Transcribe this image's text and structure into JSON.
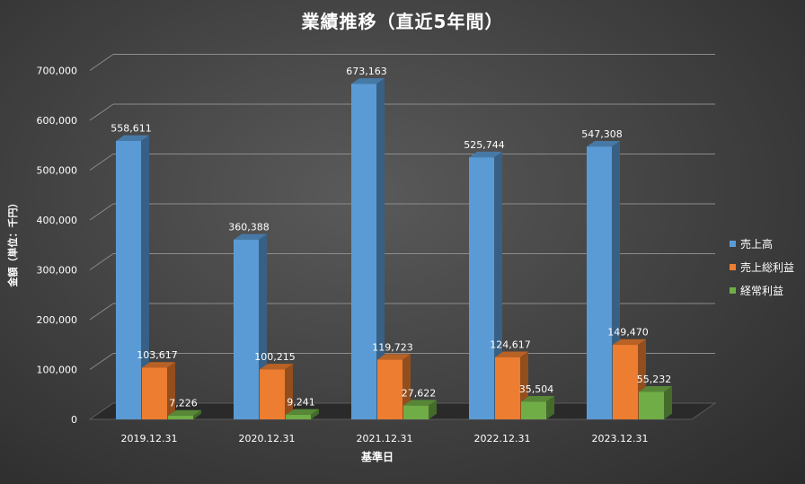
{
  "chart_data": {
    "type": "bar",
    "title": "業績推移（直近5年間）",
    "xlabel": "基準日",
    "ylabel": "金額（単位：千円）",
    "ylim": [
      0,
      700000
    ],
    "ytick_labels": [
      "0",
      "100,000",
      "200,000",
      "300,000",
      "400,000",
      "500,000",
      "600,000",
      "700,000"
    ],
    "yticks": [
      0,
      100000,
      200000,
      300000,
      400000,
      500000,
      600000,
      700000
    ],
    "categories": [
      "2019.12.31",
      "2020.12.31",
      "2021.12.31",
      "2022.12.31",
      "2023.12.31"
    ],
    "series": [
      {
        "name": "売上高",
        "color": "#5b9bd5",
        "values": [
          558611,
          360388,
          673163,
          525744,
          547308
        ],
        "labels": [
          "558,611",
          "360,388",
          "673,163",
          "525,744",
          "547,308"
        ]
      },
      {
        "name": "売上総利益",
        "color": "#ed7d31",
        "values": [
          103617,
          100215,
          119723,
          124617,
          149470
        ],
        "labels": [
          "103,617",
          "100,215",
          "119,723",
          "124,617",
          "149,470"
        ]
      },
      {
        "name": "経常利益",
        "color": "#70ad47",
        "values": [
          7226,
          9241,
          27622,
          35504,
          55232
        ],
        "labels": [
          "7,226",
          "9,241",
          "27,622",
          "35,504",
          "55,232"
        ]
      }
    ],
    "grid": true,
    "legend_position": "right"
  }
}
